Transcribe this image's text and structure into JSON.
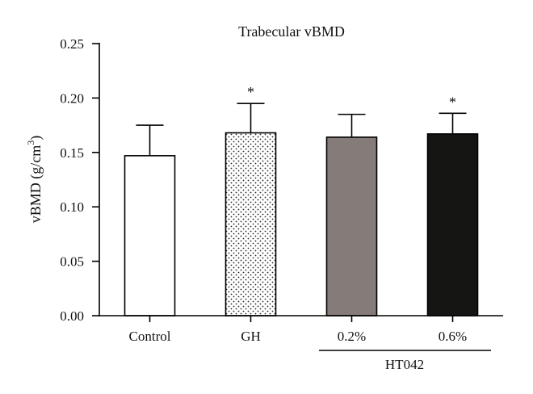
{
  "chart_data": {
    "type": "bar",
    "title": "Trabecular vBMD",
    "xlabel": "",
    "ylabel": "vBMD (g/cm",
    "ylabel_superscript": "3",
    "ylabel_close": ")",
    "ylim": [
      0,
      0.25
    ],
    "yticks": [
      "0.00",
      "0.05",
      "0.10",
      "0.15",
      "0.20",
      "0.25"
    ],
    "categories": [
      "Control",
      "GH",
      "0.2%",
      "0.6%"
    ],
    "values": [
      0.147,
      0.168,
      0.164,
      0.167
    ],
    "error_upper": [
      0.175,
      0.195,
      0.185,
      0.186
    ],
    "significance": [
      "",
      "*",
      "",
      "*"
    ],
    "bar_fills": [
      "#ffffff",
      "dotted",
      "#857b78",
      "#151514"
    ],
    "group_bracket": {
      "label": "HT042",
      "categories": [
        "0.2%",
        "0.6%"
      ]
    },
    "grid": false
  }
}
